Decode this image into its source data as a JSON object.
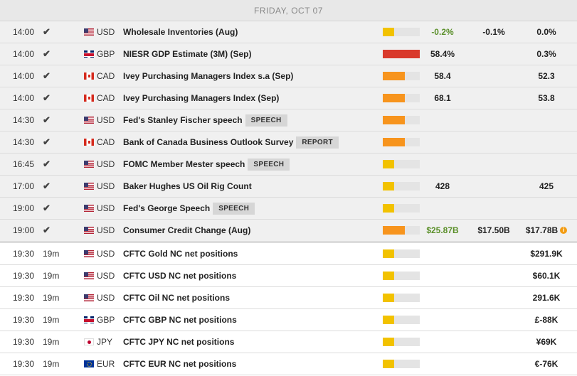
{
  "header": {
    "date": "FRIDAY, OCT 07"
  },
  "rows": [
    {
      "time": "14:00",
      "status": "✔",
      "country": "us",
      "currency": "USD",
      "event": "Wholesale Inventories (Aug)",
      "tag": "",
      "impact": {
        "level": "low",
        "fraction": 0.3,
        "color": "#f2c200"
      },
      "actual": "-0.2%",
      "actual_color": "#5a8f29",
      "forecast": "-0.1%",
      "previous": "0.0%",
      "info": false,
      "past": true
    },
    {
      "time": "14:00",
      "status": "✔",
      "country": "gb",
      "currency": "GBP",
      "event": "NIESR GDP Estimate (3M) (Sep)",
      "tag": "",
      "impact": {
        "level": "high",
        "fraction": 1.0,
        "color": "#d9392b"
      },
      "actual": "58.4%",
      "actual_color": "#222222",
      "forecast": "",
      "previous": "0.3%",
      "info": false,
      "past": true
    },
    {
      "time": "14:00",
      "status": "✔",
      "country": "ca",
      "currency": "CAD",
      "event": "Ivey Purchasing Managers Index s.a (Sep)",
      "tag": "",
      "impact": {
        "level": "medium",
        "fraction": 0.6,
        "color": "#f7941d"
      },
      "actual": "58.4",
      "actual_color": "#222222",
      "forecast": "",
      "previous": "52.3",
      "info": false,
      "past": true
    },
    {
      "time": "14:00",
      "status": "✔",
      "country": "ca",
      "currency": "CAD",
      "event": "Ivey Purchasing Managers Index (Sep)",
      "tag": "",
      "impact": {
        "level": "medium",
        "fraction": 0.6,
        "color": "#f7941d"
      },
      "actual": "68.1",
      "actual_color": "#222222",
      "forecast": "",
      "previous": "53.8",
      "info": false,
      "past": true
    },
    {
      "time": "14:30",
      "status": "✔",
      "country": "us",
      "currency": "USD",
      "event": "Fed's Stanley Fischer speech",
      "tag": "SPEECH",
      "impact": {
        "level": "medium",
        "fraction": 0.6,
        "color": "#f7941d"
      },
      "actual": "",
      "actual_color": "#222222",
      "forecast": "",
      "previous": "",
      "info": false,
      "past": true
    },
    {
      "time": "14:30",
      "status": "✔",
      "country": "ca",
      "currency": "CAD",
      "event": "Bank of Canada Business Outlook Survey",
      "tag": "REPORT",
      "impact": {
        "level": "medium",
        "fraction": 0.6,
        "color": "#f7941d"
      },
      "actual": "",
      "actual_color": "#222222",
      "forecast": "",
      "previous": "",
      "info": false,
      "past": true
    },
    {
      "time": "16:45",
      "status": "✔",
      "country": "us",
      "currency": "USD",
      "event": "FOMC Member Mester speech",
      "tag": "SPEECH",
      "impact": {
        "level": "low",
        "fraction": 0.3,
        "color": "#f2c200"
      },
      "actual": "",
      "actual_color": "#222222",
      "forecast": "",
      "previous": "",
      "info": false,
      "past": true
    },
    {
      "time": "17:00",
      "status": "✔",
      "country": "us",
      "currency": "USD",
      "event": "Baker Hughes US Oil Rig Count",
      "tag": "",
      "impact": {
        "level": "low",
        "fraction": 0.3,
        "color": "#f2c200"
      },
      "actual": "428",
      "actual_color": "#222222",
      "forecast": "",
      "previous": "425",
      "info": false,
      "past": true
    },
    {
      "time": "19:00",
      "status": "✔",
      "country": "us",
      "currency": "USD",
      "event": "Fed's George Speech",
      "tag": "SPEECH",
      "impact": {
        "level": "low",
        "fraction": 0.3,
        "color": "#f2c200"
      },
      "actual": "",
      "actual_color": "#222222",
      "forecast": "",
      "previous": "",
      "info": false,
      "past": true
    },
    {
      "time": "19:00",
      "status": "✔",
      "country": "us",
      "currency": "USD",
      "event": "Consumer Credit Change (Aug)",
      "tag": "",
      "impact": {
        "level": "medium",
        "fraction": 0.6,
        "color": "#f7941d"
      },
      "actual": "$25.87B",
      "actual_color": "#5a8f29",
      "forecast": "$17.50B",
      "previous": "$17.78B",
      "info": true,
      "past": true
    },
    {
      "time": "19:30",
      "status": "19m",
      "country": "us",
      "currency": "USD",
      "event": "CFTC Gold NC net positions",
      "tag": "",
      "impact": {
        "level": "low",
        "fraction": 0.3,
        "color": "#f2c200"
      },
      "actual": "",
      "actual_color": "#222222",
      "forecast": "",
      "previous": "$291.9K",
      "info": false,
      "past": false
    },
    {
      "time": "19:30",
      "status": "19m",
      "country": "us",
      "currency": "USD",
      "event": "CFTC USD NC net positions",
      "tag": "",
      "impact": {
        "level": "low",
        "fraction": 0.3,
        "color": "#f2c200"
      },
      "actual": "",
      "actual_color": "#222222",
      "forecast": "",
      "previous": "$60.1K",
      "info": false,
      "past": false
    },
    {
      "time": "19:30",
      "status": "19m",
      "country": "us",
      "currency": "USD",
      "event": "CFTC Oil NC net positions",
      "tag": "",
      "impact": {
        "level": "low",
        "fraction": 0.3,
        "color": "#f2c200"
      },
      "actual": "",
      "actual_color": "#222222",
      "forecast": "",
      "previous": "291.6K",
      "info": false,
      "past": false
    },
    {
      "time": "19:30",
      "status": "19m",
      "country": "gb",
      "currency": "GBP",
      "event": "CFTC GBP NC net positions",
      "tag": "",
      "impact": {
        "level": "low",
        "fraction": 0.3,
        "color": "#f2c200"
      },
      "actual": "",
      "actual_color": "#222222",
      "forecast": "",
      "previous": "£-88K",
      "info": false,
      "past": false
    },
    {
      "time": "19:30",
      "status": "19m",
      "country": "jp",
      "currency": "JPY",
      "event": "CFTC JPY NC net positions",
      "tag": "",
      "impact": {
        "level": "low",
        "fraction": 0.3,
        "color": "#f2c200"
      },
      "actual": "",
      "actual_color": "#222222",
      "forecast": "",
      "previous": "¥69K",
      "info": false,
      "past": false
    },
    {
      "time": "19:30",
      "status": "19m",
      "country": "eu",
      "currency": "EUR",
      "event": "CFTC EUR NC net positions",
      "tag": "",
      "impact": {
        "level": "low",
        "fraction": 0.3,
        "color": "#f2c200"
      },
      "actual": "",
      "actual_color": "#222222",
      "forecast": "",
      "previous": "€-76K",
      "info": false,
      "past": false
    }
  ]
}
